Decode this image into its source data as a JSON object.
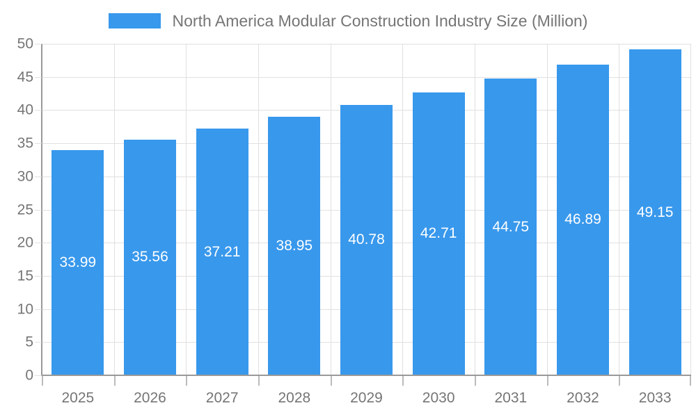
{
  "legend": {
    "label": "North America Modular Construction Industry Size (Million)"
  },
  "colors": {
    "bar": "#3898ec",
    "grid": "#e0e0e0",
    "axis": "#999999",
    "tick_label": "#757575",
    "bar_label": "#ffffff",
    "background": "#ffffff"
  },
  "chart_data": {
    "type": "bar",
    "title": "North America Modular Construction Industry Size (Million)",
    "categories": [
      "2025",
      "2026",
      "2027",
      "2028",
      "2029",
      "2030",
      "2031",
      "2032",
      "2033"
    ],
    "values": [
      33.99,
      35.56,
      37.21,
      38.95,
      40.78,
      42.71,
      44.75,
      46.89,
      49.15
    ],
    "value_labels": [
      "33.99",
      "35.56",
      "37.21",
      "38.95",
      "40.78",
      "42.71",
      "44.75",
      "46.89",
      "49.15"
    ],
    "xlabel": "",
    "ylabel": "",
    "ylim": [
      0,
      50
    ],
    "ytick_step": 5,
    "ytick_labels": [
      "0",
      "5",
      "10",
      "15",
      "20",
      "25",
      "30",
      "35",
      "40",
      "45",
      "50"
    ],
    "grid": true,
    "legend_position": "top",
    "bar_value_label_position": "center"
  }
}
